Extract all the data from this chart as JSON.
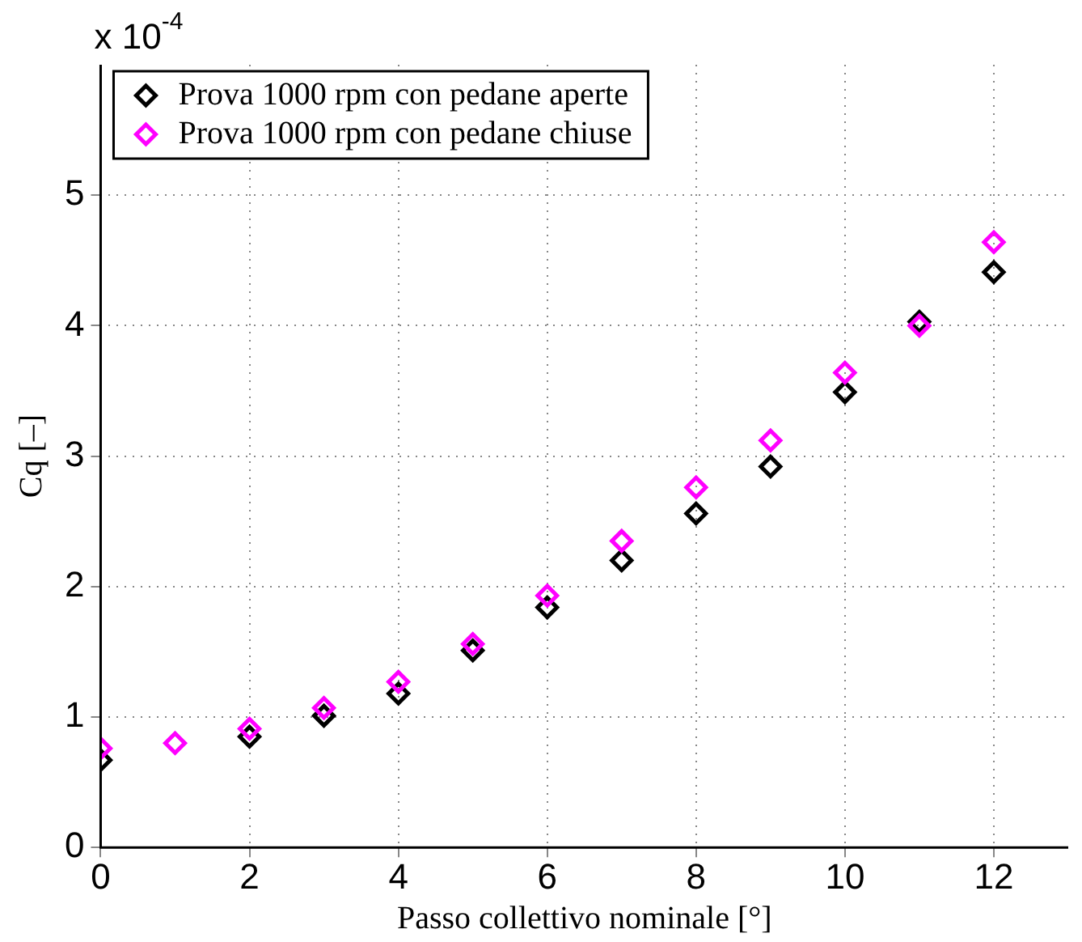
{
  "chart_data": {
    "type": "scatter",
    "xlabel": "Passo collettivo nominale [°]",
    "ylabel": "Cq [–]",
    "annotations": [
      "x 10$^{-4}$"
    ],
    "x": [
      0,
      1,
      2,
      3,
      4,
      5,
      6,
      7,
      8,
      9,
      10,
      11,
      12
    ],
    "series": [
      {
        "name": "Prova 1000 rpm con pedane aperte",
        "color": "#000000",
        "values": [
          0.67,
          null,
          0.85,
          1.01,
          1.18,
          1.51,
          1.84,
          2.2,
          2.56,
          2.92,
          3.49,
          4.03,
          4.41
        ]
      },
      {
        "name": "Prova 1000 rpm con pedane chiuse",
        "color": "#ff00ff",
        "values": [
          0.76,
          0.8,
          0.91,
          1.07,
          1.27,
          1.56,
          1.93,
          2.35,
          2.76,
          3.12,
          3.64,
          4.0,
          4.64
        ]
      }
    ],
    "xlim": [
      0,
      13
    ],
    "xticks": [
      0,
      2,
      4,
      6,
      8,
      10,
      12
    ],
    "ylim": [
      0,
      6
    ],
    "yticks": [
      0,
      1,
      2,
      3,
      4,
      5
    ],
    "grid": true,
    "legend": "top left",
    "marker": "diamond"
  }
}
